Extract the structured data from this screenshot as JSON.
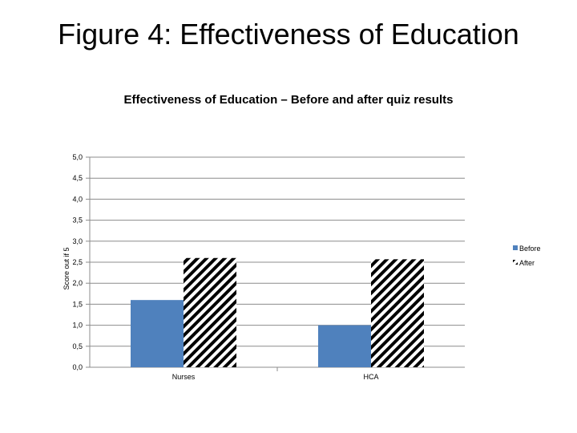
{
  "slide": {
    "title": "Figure 4: Effectiveness of Education"
  },
  "chart_data": {
    "type": "bar",
    "title": "Effectiveness of Education – Before and after quiz results",
    "xlabel": "",
    "ylabel": "Score out if 5",
    "categories": [
      "Nurses",
      "HCA"
    ],
    "series": [
      {
        "name": "Before",
        "values": [
          1.6,
          1.0
        ],
        "color": "#4f81bd"
      },
      {
        "name": "After",
        "values": [
          2.6,
          2.57
        ],
        "pattern": "diagonal-hatch",
        "color": "#000000"
      }
    ],
    "ylim": [
      0,
      5
    ],
    "yticks": [
      "0,0",
      "0,5",
      "1,0",
      "1,5",
      "2,0",
      "2,5",
      "3,0",
      "3,5",
      "4,0",
      "4,5",
      "5,0"
    ],
    "grid": true,
    "legend": "right"
  }
}
